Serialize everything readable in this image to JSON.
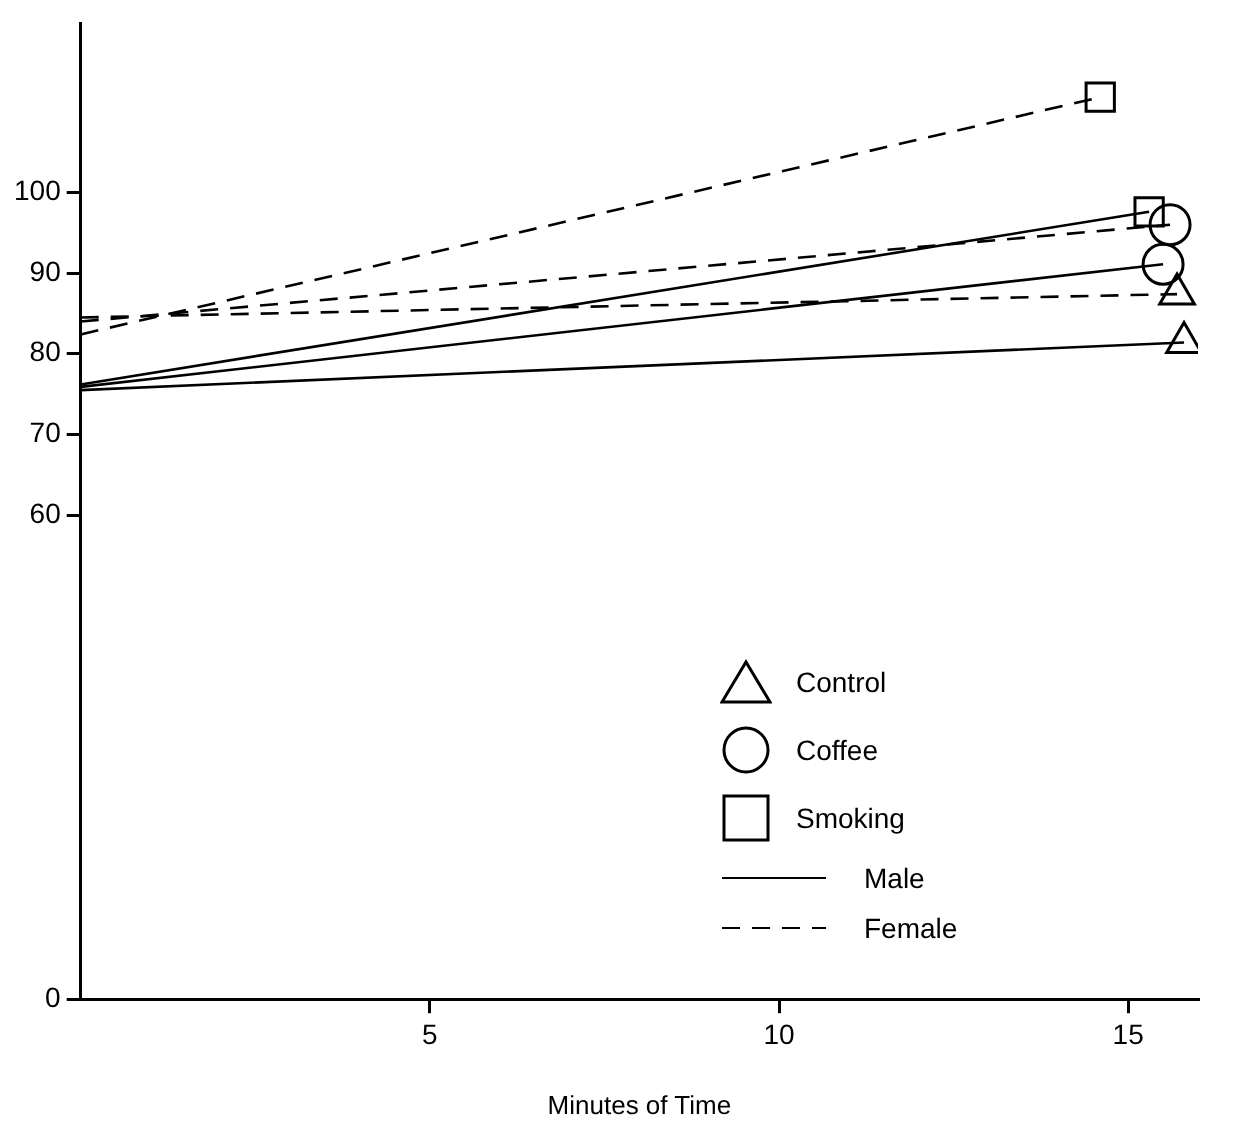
{
  "chart_data": {
    "type": "line",
    "xlabel": "Minutes of Time",
    "xlim": [
      0,
      16
    ],
    "xticks": [
      5,
      10,
      15
    ],
    "ylim": [
      0,
      121
    ],
    "yticks": [
      0,
      60,
      70,
      80,
      90,
      100
    ],
    "annotations": [
      "Control",
      "Coffee",
      "Smoking",
      "Male",
      "Female"
    ],
    "series": [
      {
        "marker": "triangle",
        "line_style": "solid",
        "color": "#000000",
        "x": [
          0,
          15.8
        ],
        "values": [
          75.5,
          81.4
        ]
      },
      {
        "marker": "circle",
        "line_style": "solid",
        "color": "#000000",
        "x": [
          0,
          15.5
        ],
        "values": [
          75.9,
          91.1
        ]
      },
      {
        "marker": "square",
        "line_style": "solid",
        "color": "#000000",
        "x": [
          0,
          15.3
        ],
        "values": [
          76.2,
          97.6
        ]
      },
      {
        "marker": "triangle",
        "line_style": "dashed",
        "color": "#000000",
        "x": [
          0,
          15.7
        ],
        "values": [
          84.5,
          87.4
        ]
      },
      {
        "marker": "circle",
        "line_style": "dashed",
        "color": "#000000",
        "x": [
          0,
          15.6
        ],
        "values": [
          84,
          96
        ]
      },
      {
        "marker": "square",
        "line_style": "dashed",
        "color": "#000000",
        "x": [
          0,
          14.6
        ],
        "values": [
          82.4,
          111.8
        ]
      }
    ]
  }
}
